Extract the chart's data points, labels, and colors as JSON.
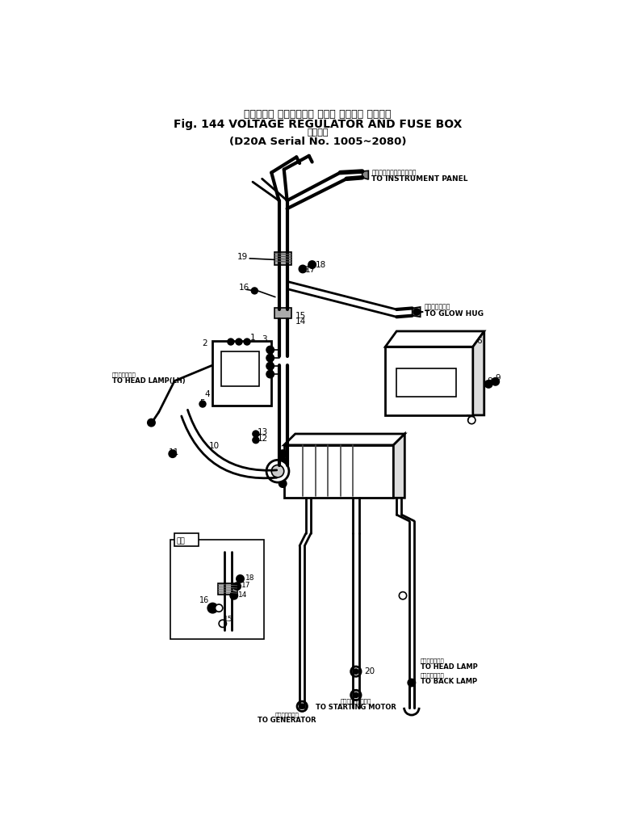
{
  "title_line1": "ボルテージ レギュレータ および ヒューズ ボックス",
  "title_line2": "Fig. 144 VOLTAGE REGULATOR AND FUSE BOX",
  "title_line3": "通用号機",
  "title_line4": "(D20A Serial No. 1005~2080)",
  "figsize": [
    7.68,
    10.1
  ],
  "dpi": 100,
  "bg_color": "#ffffff",
  "line_color": "#000000"
}
